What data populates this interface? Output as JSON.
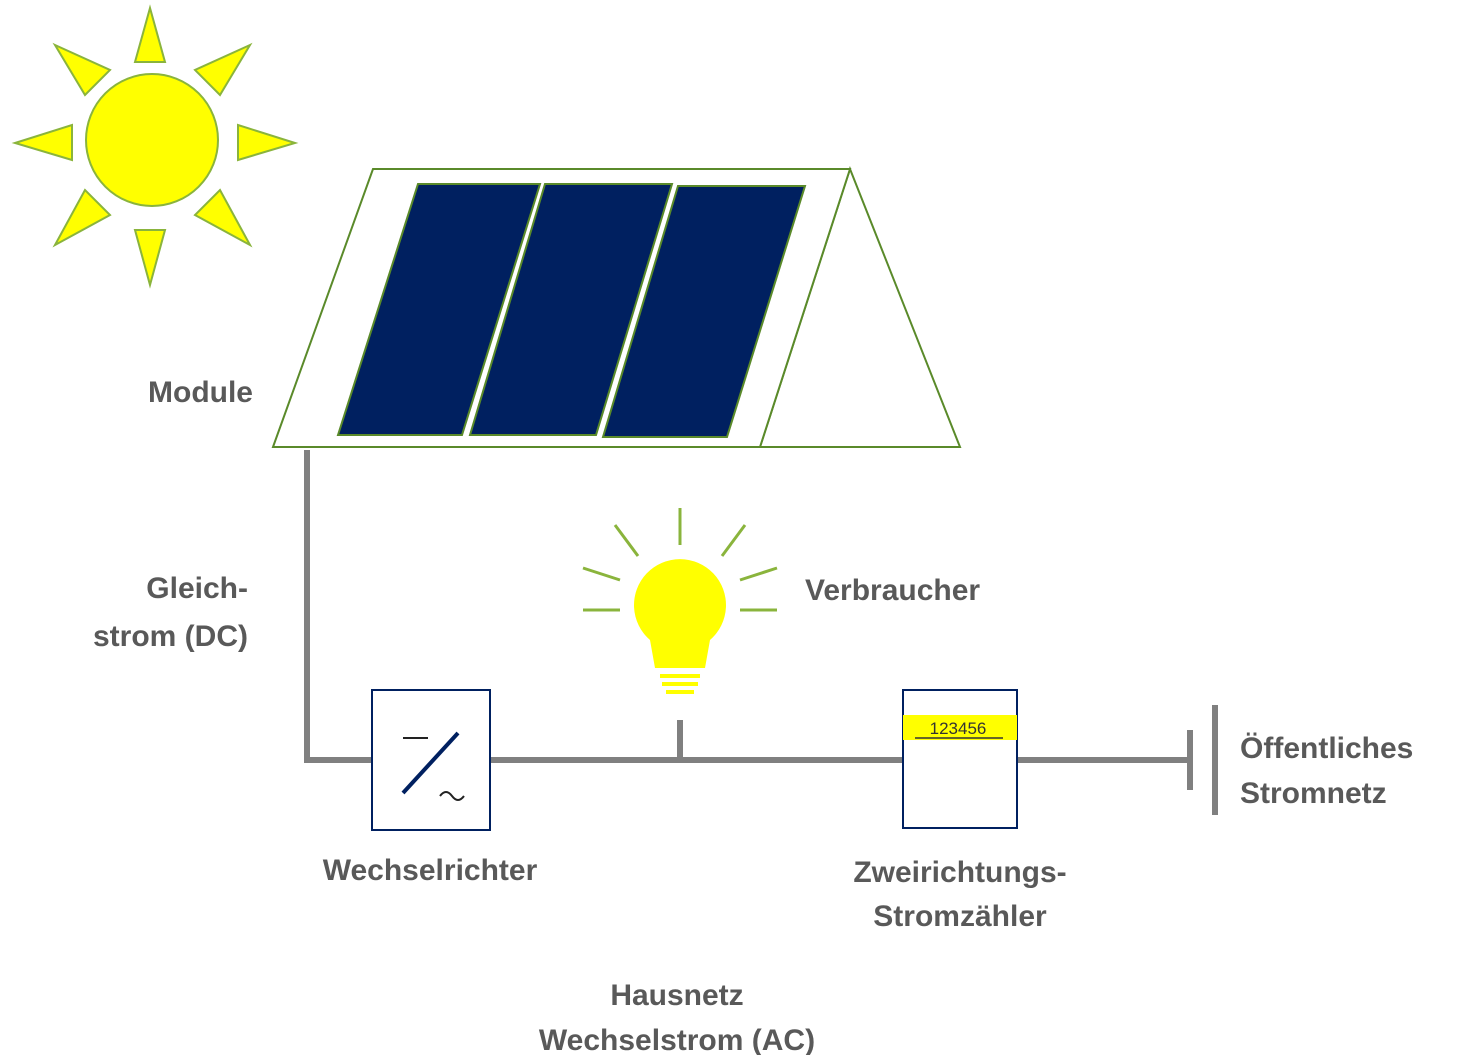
{
  "nodes": [
    {
      "lines": [
        "Module"
      ]
    },
    {
      "lines": [
        "Gleich-",
        "strom (DC)"
      ]
    },
    {
      "lines": [
        "Verbraucher"
      ]
    },
    {
      "lines": [
        "Wechselrichter"
      ]
    },
    {
      "lines": [
        "Zweirichtungs-",
        "Stromzähler"
      ],
      "display": "123456"
    },
    {
      "lines": [
        "Öffentliches",
        "Stromnetz"
      ]
    },
    {
      "lines": [
        "Hausnetz",
        "Wechselstrom (AC)"
      ]
    }
  ]
}
